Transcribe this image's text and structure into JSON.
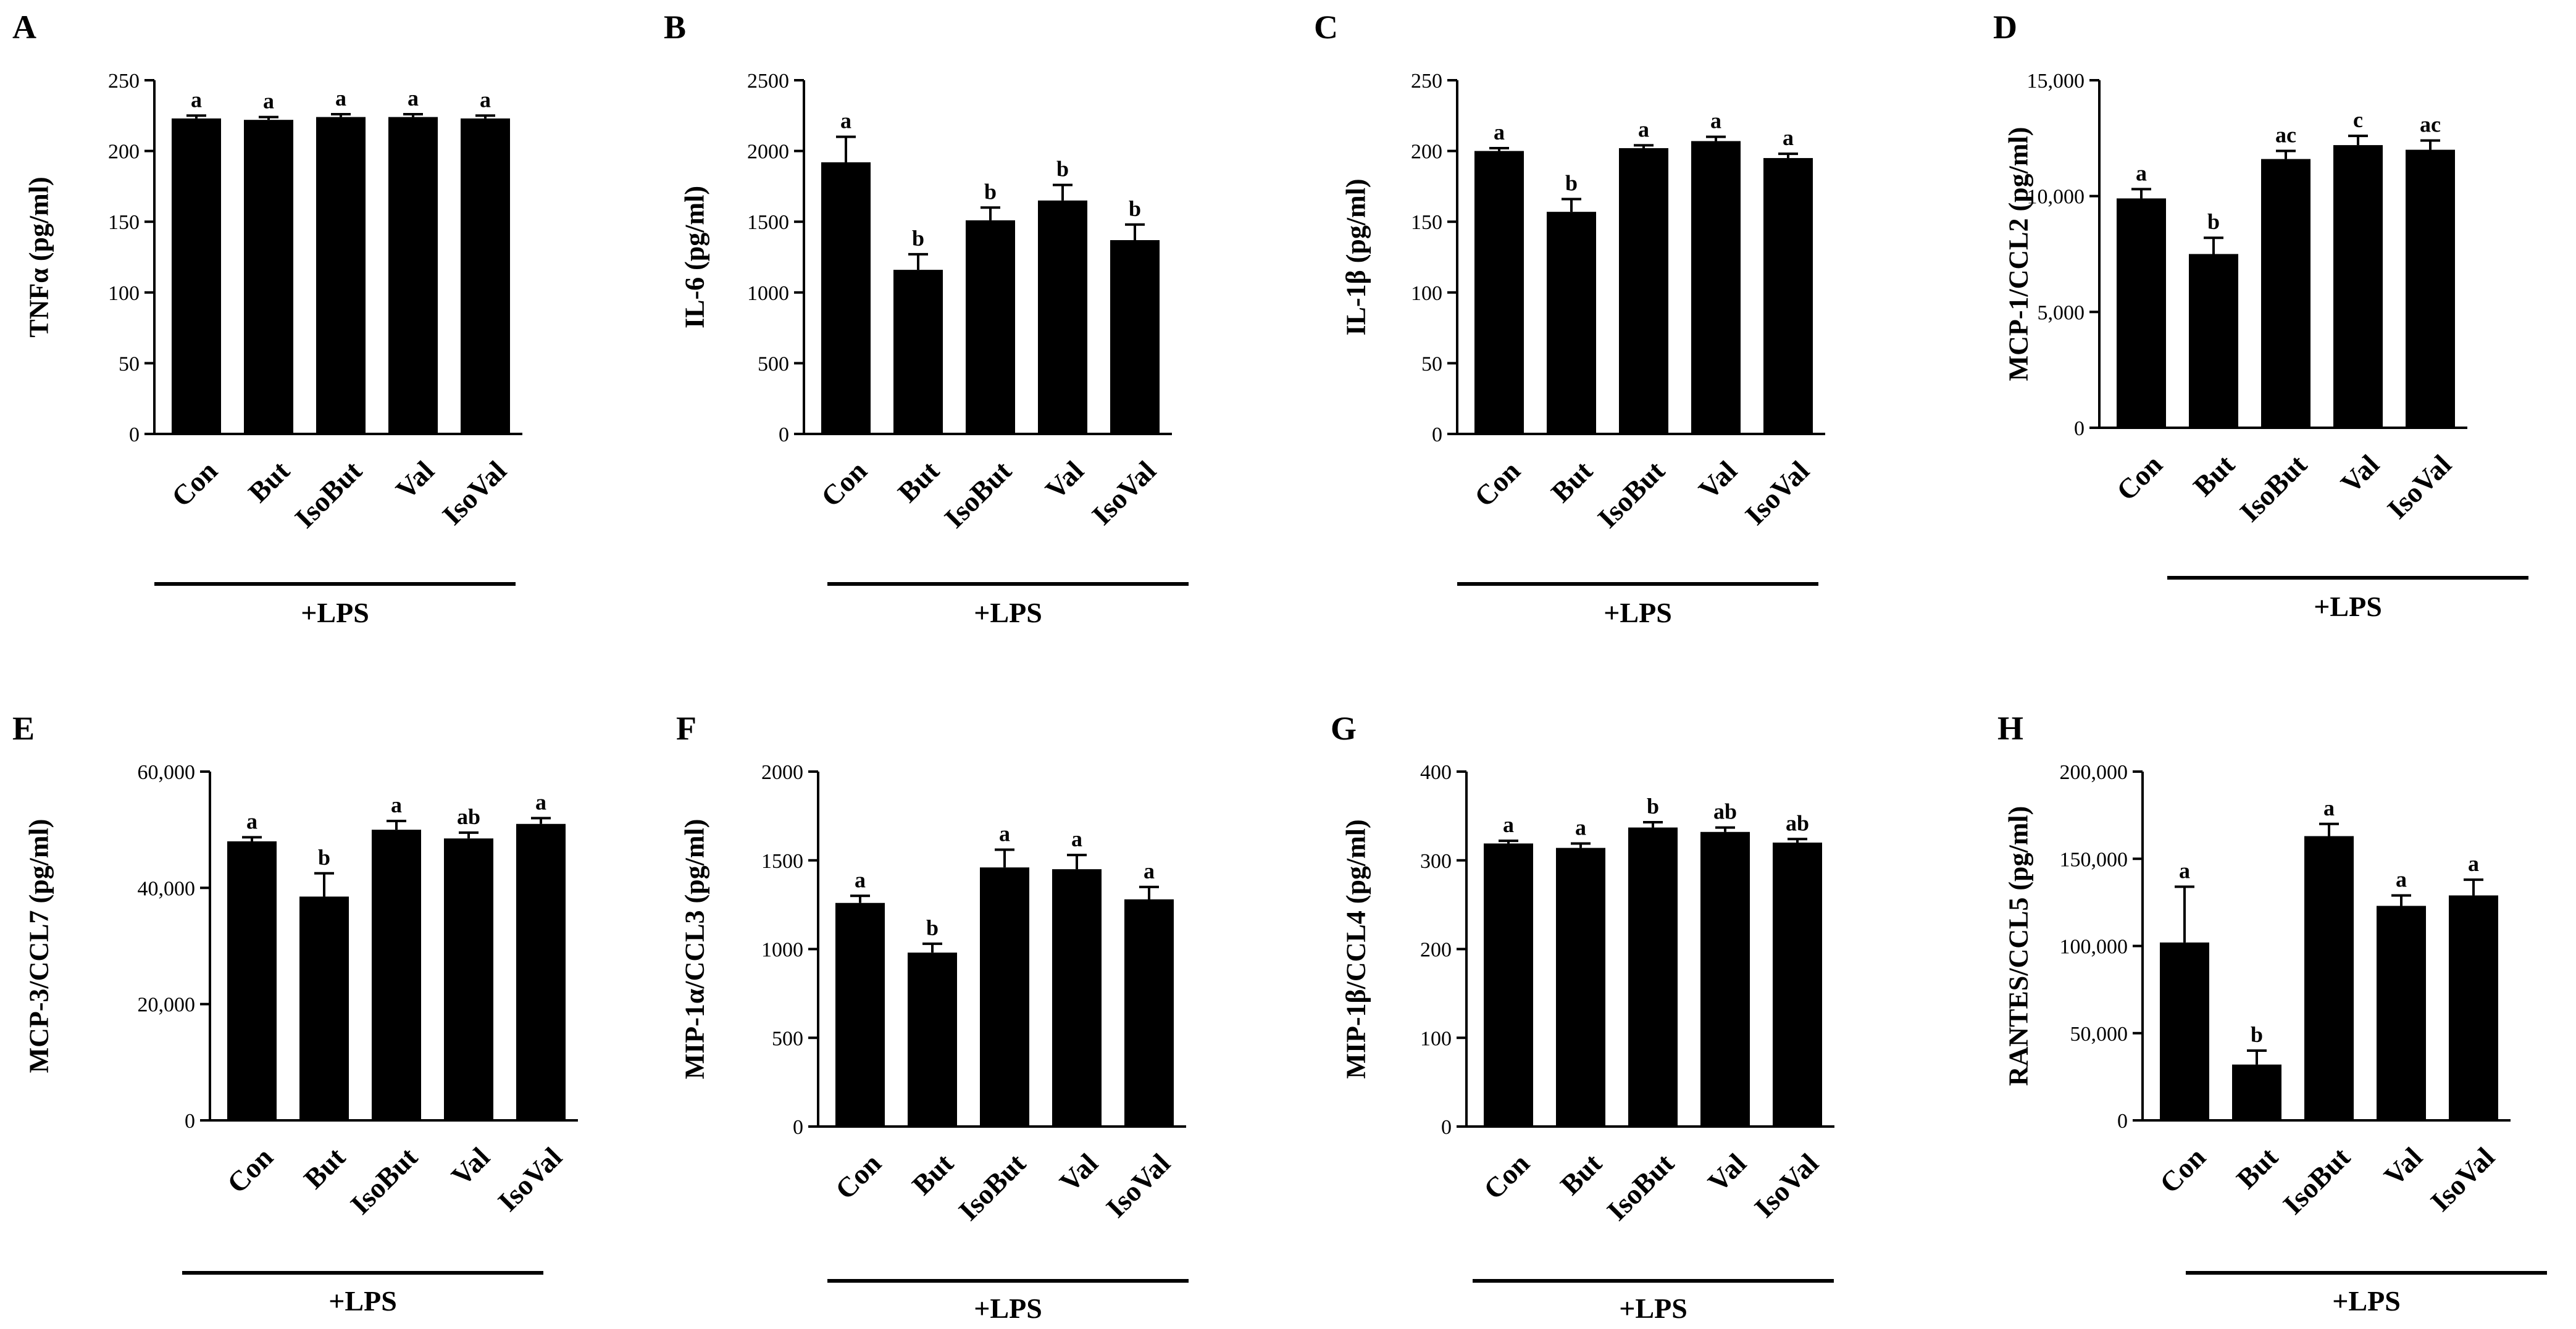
{
  "figure": {
    "treatment_label": "+LPS"
  },
  "chart_data": [
    {
      "panel": "A",
      "type": "bar",
      "ylabel": "TNFα (pg/ml)",
      "categories": [
        "Con",
        "But",
        "IsoBut",
        "Val",
        "IsoVal"
      ],
      "values": [
        223,
        222,
        224,
        224,
        223
      ],
      "errors": [
        2,
        2,
        2,
        2,
        2
      ],
      "significance": [
        "a",
        "a",
        "a",
        "a",
        "a"
      ],
      "ylim": [
        0,
        250
      ],
      "ticks": [
        0,
        50,
        100,
        150,
        200,
        250
      ],
      "tick_labels": [
        "0",
        "50",
        "100",
        "150",
        "200",
        "250"
      ]
    },
    {
      "panel": "B",
      "type": "bar",
      "ylabel": "IL-6 (pg/ml)",
      "categories": [
        "Con",
        "But",
        "IsoBut",
        "Val",
        "IsoVal"
      ],
      "values": [
        1920,
        1160,
        1510,
        1650,
        1370
      ],
      "errors": [
        180,
        110,
        90,
        110,
        110
      ],
      "significance": [
        "a",
        "b",
        "b",
        "b",
        "b"
      ],
      "ylim": [
        0,
        2500
      ],
      "ticks": [
        0,
        500,
        1000,
        1500,
        2000,
        2500
      ],
      "tick_labels": [
        "0",
        "500",
        "1000",
        "1500",
        "2000",
        "2500"
      ]
    },
    {
      "panel": "C",
      "type": "bar",
      "ylabel": "IL-1β (pg/ml)",
      "categories": [
        "Con",
        "But",
        "IsoBut",
        "Val",
        "IsoVal"
      ],
      "values": [
        200,
        157,
        202,
        207,
        195
      ],
      "errors": [
        2,
        9,
        2,
        3,
        3
      ],
      "significance": [
        "a",
        "b",
        "a",
        "a",
        "a"
      ],
      "ylim": [
        0,
        250
      ],
      "ticks": [
        0,
        50,
        100,
        150,
        200,
        250
      ],
      "tick_labels": [
        "0",
        "50",
        "100",
        "150",
        "200",
        "250"
      ]
    },
    {
      "panel": "D",
      "type": "bar",
      "ylabel": "MCP-1/CCL2 (pg/ml)",
      "categories": [
        "Con",
        "But",
        "IsoBut",
        "Val",
        "IsoVal"
      ],
      "values": [
        9900,
        7500,
        11600,
        12200,
        12000
      ],
      "errors": [
        400,
        700,
        350,
        400,
        400
      ],
      "significance": [
        "a",
        "b",
        "ac",
        "c",
        "ac"
      ],
      "ylim": [
        0,
        15000
      ],
      "ticks": [
        0,
        5000,
        10000,
        15000
      ],
      "tick_labels": [
        "0",
        "5,000",
        "10,000",
        "15,000"
      ]
    },
    {
      "panel": "E",
      "type": "bar",
      "ylabel": "MCP-3/CCL7 (pg/ml)",
      "categories": [
        "Con",
        "But",
        "IsoBut",
        "Val",
        "IsoVal"
      ],
      "values": [
        48000,
        38500,
        50000,
        48500,
        51000
      ],
      "errors": [
        700,
        4000,
        1500,
        1000,
        1000
      ],
      "significance": [
        "a",
        "b",
        "a",
        "ab",
        "a"
      ],
      "ylim": [
        0,
        60000
      ],
      "ticks": [
        0,
        20000,
        40000,
        60000
      ],
      "tick_labels": [
        "0",
        "20,000",
        "40,000",
        "60,000"
      ]
    },
    {
      "panel": "F",
      "type": "bar",
      "ylabel": "MIP-1α/CCL3 (pg/ml)",
      "categories": [
        "Con",
        "But",
        "IsoBut",
        "Val",
        "IsoVal"
      ],
      "values": [
        1260,
        980,
        1460,
        1450,
        1280
      ],
      "errors": [
        40,
        50,
        100,
        80,
        70
      ],
      "significance": [
        "a",
        "b",
        "a",
        "a",
        "a"
      ],
      "ylim": [
        0,
        2000
      ],
      "ticks": [
        0,
        500,
        1000,
        1500,
        2000
      ],
      "tick_labels": [
        "0",
        "500",
        "1000",
        "1500",
        "2000"
      ]
    },
    {
      "panel": "G",
      "type": "bar",
      "ylabel": "MIP-1β/CCL4 (pg/ml)",
      "categories": [
        "Con",
        "But",
        "IsoBut",
        "Val",
        "IsoVal"
      ],
      "values": [
        319,
        314,
        337,
        332,
        320
      ],
      "errors": [
        3,
        5,
        6,
        5,
        4
      ],
      "significance": [
        "a",
        "a",
        "b",
        "ab",
        "ab"
      ],
      "ylim": [
        0,
        400
      ],
      "ticks": [
        0,
        100,
        200,
        300,
        400
      ],
      "tick_labels": [
        "0",
        "100",
        "200",
        "300",
        "400"
      ]
    },
    {
      "panel": "H",
      "type": "bar",
      "ylabel": "RANTES/CCL5 (pg/ml)",
      "categories": [
        "Con",
        "But",
        "IsoBut",
        "Val",
        "IsoVal"
      ],
      "values": [
        102000,
        32000,
        163000,
        123000,
        129000
      ],
      "errors": [
        32000,
        8000,
        7000,
        6000,
        9000
      ],
      "significance": [
        "a",
        "b",
        "a",
        "a",
        "a"
      ],
      "ylim": [
        0,
        200000
      ],
      "ticks": [
        0,
        50000,
        100000,
        150000,
        200000
      ],
      "tick_labels": [
        "0",
        "50,000",
        "100,000",
        "150,000",
        "200,000"
      ]
    }
  ]
}
